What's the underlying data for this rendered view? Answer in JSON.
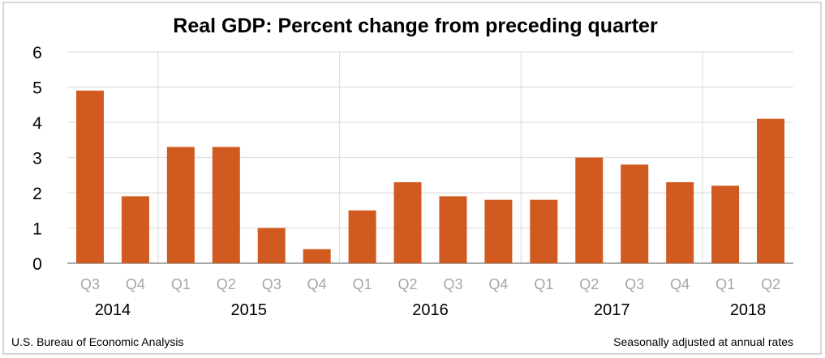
{
  "chart_data": {
    "type": "bar",
    "title": "Real GDP:  Percent change from preceding quarter",
    "categories": [
      "Q3",
      "Q4",
      "Q1",
      "Q2",
      "Q3",
      "Q4",
      "Q1",
      "Q2",
      "Q3",
      "Q4",
      "Q1",
      "Q2",
      "Q3",
      "Q4",
      "Q1",
      "Q2"
    ],
    "years": [
      {
        "label": "2014",
        "quarters": 2
      },
      {
        "label": "2015",
        "quarters": 4
      },
      {
        "label": "2016",
        "quarters": 4
      },
      {
        "label": "2017",
        "quarters": 4
      },
      {
        "label": "2018",
        "quarters": 2
      }
    ],
    "values": [
      4.9,
      1.9,
      3.3,
      3.3,
      1.0,
      0.4,
      1.5,
      2.3,
      1.9,
      1.8,
      1.8,
      3.0,
      2.8,
      2.3,
      2.2,
      4.1
    ],
    "ylim": [
      0,
      6
    ],
    "yticks": [
      0,
      1,
      2,
      3,
      4,
      5,
      6
    ],
    "xlabel": "",
    "ylabel": "",
    "grid": true,
    "bar_color": "#d05a1f",
    "source": "U.S. Bureau of Economic Analysis",
    "note": "Seasonally adjusted at annual rates"
  }
}
